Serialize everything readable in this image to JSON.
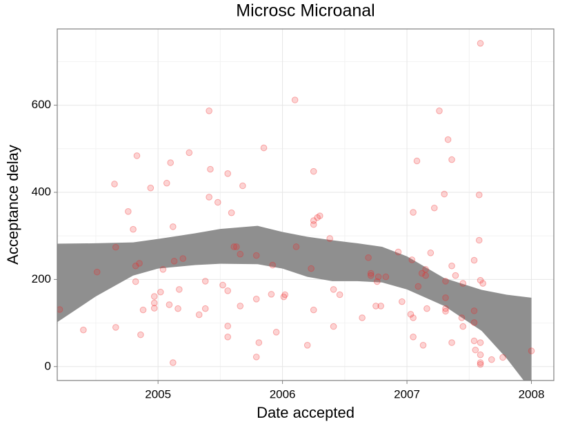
{
  "chart_data": {
    "type": "scatter",
    "title": "Microsc Microanal",
    "x_label": "Date accepted",
    "y_label": "Acceptance delay",
    "xlim": [
      2004.19,
      2008.18
    ],
    "xticks": [
      2005,
      2006,
      2007,
      2008
    ],
    "ylim": [
      -32,
      775
    ],
    "yticks": [
      0,
      200,
      400,
      600
    ],
    "grid": true,
    "color": "#f22222",
    "x": [
      2004.21,
      2004.4,
      2004.51,
      2004.65,
      2004.66,
      2004.66,
      2004.76,
      2004.8,
      2004.82,
      2004.82,
      2004.83,
      2004.85,
      2004.86,
      2004.88,
      2004.94,
      2004.97,
      2004.97,
      2004.97,
      2005.02,
      2005.04,
      2005.07,
      2005.09,
      2005.1,
      2005.12,
      2005.12,
      2005.13,
      2005.16,
      2005.17,
      2005.2,
      2005.25,
      2005.33,
      2005.38,
      2005.38,
      2005.41,
      2005.41,
      2005.42,
      2005.48,
      2005.52,
      2005.56,
      2005.56,
      2005.56,
      2005.56,
      2005.59,
      2005.61,
      2005.63,
      2005.66,
      2005.66,
      2005.68,
      2005.79,
      2005.79,
      2005.79,
      2005.81,
      2005.85,
      2005.91,
      2005.92,
      2005.95,
      2006.01,
      2006.02,
      2006.1,
      2006.11,
      2006.2,
      2006.23,
      2006.25,
      2006.25,
      2006.25,
      2006.25,
      2006.28,
      2006.3,
      2006.38,
      2006.41,
      2006.41,
      2006.46,
      2006.64,
      2006.69,
      2006.71,
      2006.71,
      2006.75,
      2006.76,
      2006.77,
      2006.79,
      2006.83,
      2006.93,
      2006.96,
      2007.03,
      2007.04,
      2007.05,
      2007.05,
      2007.05,
      2007.08,
      2007.09,
      2007.12,
      2007.13,
      2007.15,
      2007.15,
      2007.16,
      2007.19,
      2007.22,
      2007.26,
      2007.3,
      2007.31,
      2007.31,
      2007.31,
      2007.31,
      2007.33,
      2007.36,
      2007.36,
      2007.36,
      2007.39,
      2007.44,
      2007.45,
      2007.45,
      2007.54,
      2007.54,
      2007.54,
      2007.54,
      2007.55,
      2007.58,
      2007.58,
      2007.59,
      2007.59,
      2007.59,
      2007.59,
      2007.59,
      2007.59,
      2007.61,
      2007.68,
      2007.77,
      2008.0
    ],
    "values": [
      131,
      84,
      217,
      419,
      90,
      274,
      356,
      315,
      195,
      231,
      484,
      237,
      73,
      130,
      410,
      146,
      134,
      161,
      171,
      223,
      421,
      142,
      468,
      9,
      321,
      242,
      133,
      177,
      248,
      491,
      119,
      133,
      196,
      389,
      587,
      453,
      377,
      187,
      93,
      68,
      443,
      174,
      353,
      275,
      275,
      139,
      258,
      415,
      155,
      255,
      22,
      55,
      502,
      166,
      233,
      79,
      160,
      165,
      612,
      275,
      49,
      225,
      335,
      326,
      448,
      130,
      342,
      346,
      294,
      177,
      92,
      165,
      112,
      250,
      214,
      209,
      139,
      195,
      206,
      139,
      206,
      263,
      149,
      120,
      245,
      112,
      354,
      68,
      472,
      184,
      214,
      49,
      209,
      223,
      133,
      261,
      364,
      587,
      396,
      196,
      158,
      133,
      127,
      521,
      475,
      231,
      55,
      209,
      112,
      92,
      191,
      128,
      244,
      101,
      59,
      38,
      394,
      290,
      198,
      55,
      27,
      9,
      5,
      742,
      191,
      16,
      21,
      36
    ],
    "band": {
      "color": "#8f8f8f",
      "x": [
        2004.19,
        2004.5,
        2004.8,
        2005.0,
        2005.3,
        2005.5,
        2005.8,
        2006.0,
        2006.2,
        2006.4,
        2006.6,
        2006.8,
        2007.0,
        2007.3,
        2007.6,
        2007.8,
        2008.0
      ],
      "upper": [
        282,
        283,
        285,
        293,
        306,
        316,
        323,
        309,
        298,
        290,
        283,
        275,
        253,
        203,
        176,
        165,
        158
      ],
      "lower": [
        102,
        161,
        209,
        225,
        233,
        236,
        235,
        225,
        206,
        196,
        196,
        193,
        177,
        139,
        82,
        19,
        -55
      ]
    }
  }
}
